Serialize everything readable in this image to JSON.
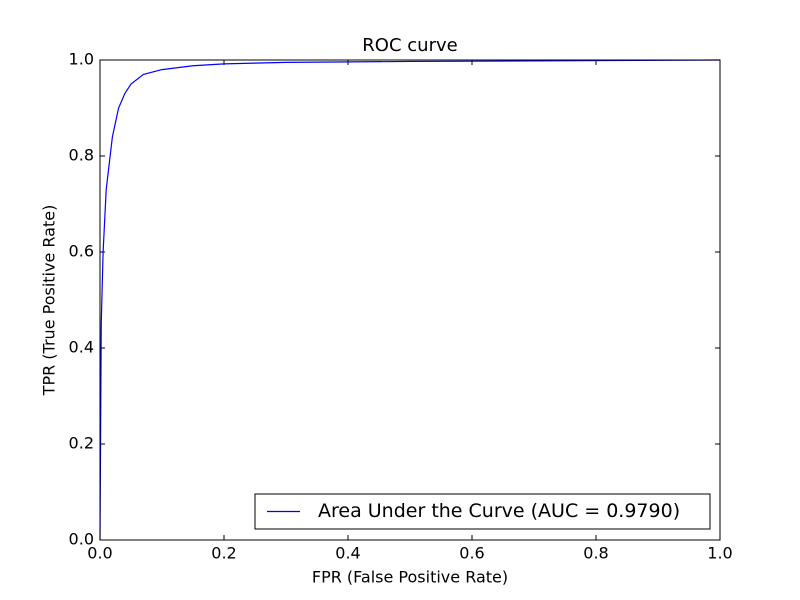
{
  "chart_data": {
    "type": "line",
    "title": "ROC curve",
    "xlabel": "FPR (False Positive Rate)",
    "ylabel": "TPR (True Positive Rate)",
    "x": [
      0,
      0.002,
      0.005,
      0.01,
      0.02,
      0.03,
      0.04,
      0.05,
      0.07,
      0.1,
      0.15,
      0.2,
      0.3,
      0.5,
      0.7,
      1.0
    ],
    "series": [
      {
        "name": "Area Under the Curve (AUC = 0.9790)",
        "color": "#0000ff",
        "values": [
          0,
          0.45,
          0.6,
          0.73,
          0.84,
          0.9,
          0.93,
          0.95,
          0.97,
          0.98,
          0.988,
          0.992,
          0.995,
          0.997,
          0.998,
          1.0
        ]
      }
    ],
    "xlim": [
      0,
      1
    ],
    "ylim": [
      0,
      1
    ],
    "xticks": [
      {
        "value": 0,
        "label": "0.0"
      },
      0.2,
      0.4,
      0.6,
      0.8,
      {
        "value": 1,
        "label": "1.0"
      }
    ],
    "yticks": [
      {
        "value": 0,
        "label": "0.0"
      },
      0.2,
      0.4,
      0.6,
      0.8,
      {
        "value": 1,
        "label": "1.0"
      }
    ],
    "legend": "lower right"
  }
}
